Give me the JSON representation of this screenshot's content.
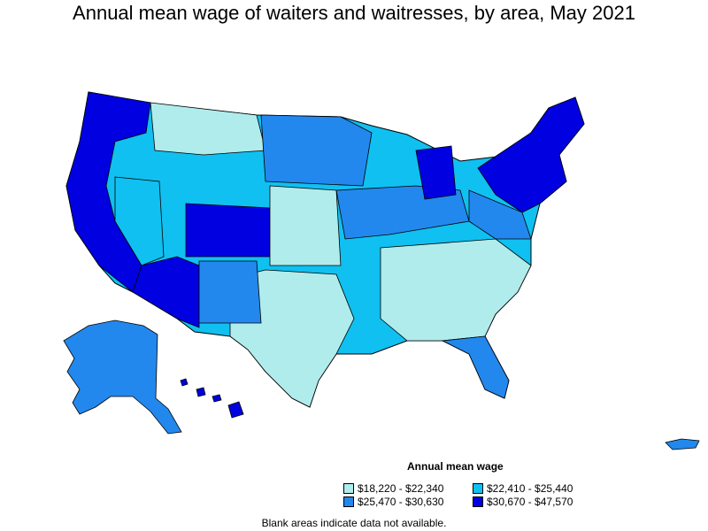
{
  "title": "Annual mean wage of waiters and waitresses, by area, May 2021",
  "legend": {
    "title": "Annual mean wage",
    "items": [
      {
        "label": "$18,220 - $22,340",
        "color": "#b0ecec"
      },
      {
        "label": "$22,410 - $25,440",
        "color": "#10c0f0"
      },
      {
        "label": "$25,470 - $30,630",
        "color": "#2288ee"
      },
      {
        "label": "$30,670 - $47,570",
        "color": "#0000e0"
      }
    ]
  },
  "note": "Blank areas indicate data not available."
}
